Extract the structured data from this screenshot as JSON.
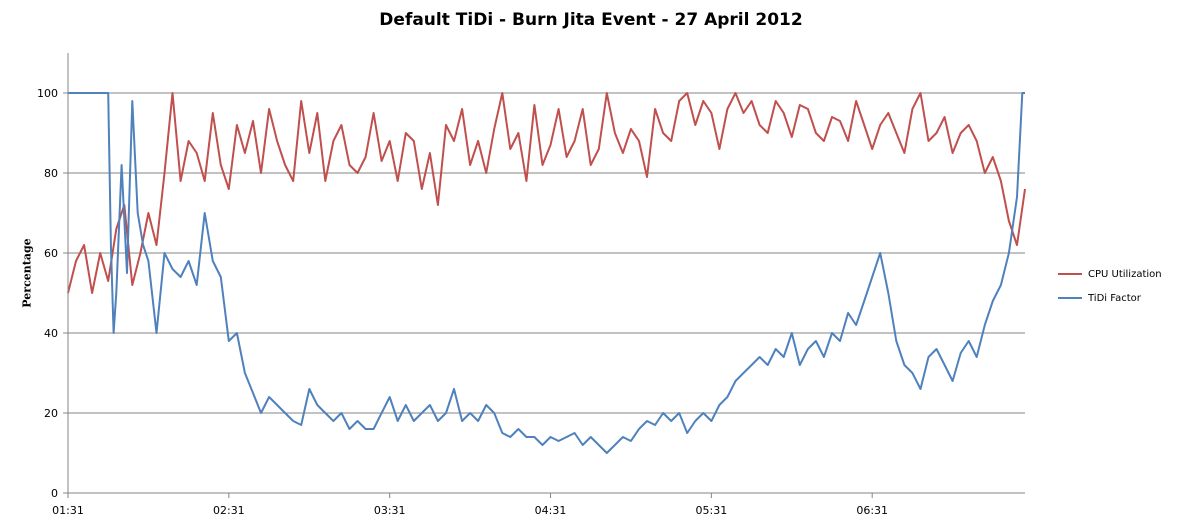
{
  "chart_data": {
    "type": "line",
    "title": "Default TiDi - Burn Jita Event - 27 April 2012",
    "xlabel": "",
    "ylabel": "Percentage",
    "ylim": [
      0,
      110
    ],
    "yticks": [
      "0",
      "20",
      "40",
      "60",
      "80",
      "100"
    ],
    "xticks": [
      "01:31",
      "02:31",
      "03:31",
      "04:31",
      "05:31",
      "06:31"
    ],
    "xrange_minutes": [
      0,
      357
    ],
    "grid": true,
    "legend_position": "right",
    "series": [
      {
        "name": "CPU Utilization",
        "color": "#C0504D",
        "points": [
          [
            0,
            50
          ],
          [
            3,
            58
          ],
          [
            6,
            62
          ],
          [
            9,
            50
          ],
          [
            12,
            60
          ],
          [
            15,
            53
          ],
          [
            18,
            66
          ],
          [
            21,
            72
          ],
          [
            24,
            52
          ],
          [
            27,
            60
          ],
          [
            30,
            70
          ],
          [
            33,
            62
          ],
          [
            36,
            80
          ],
          [
            39,
            100
          ],
          [
            42,
            78
          ],
          [
            45,
            88
          ],
          [
            48,
            85
          ],
          [
            51,
            78
          ],
          [
            54,
            95
          ],
          [
            57,
            82
          ],
          [
            60,
            76
          ],
          [
            63,
            92
          ],
          [
            66,
            85
          ],
          [
            69,
            93
          ],
          [
            72,
            80
          ],
          [
            75,
            96
          ],
          [
            78,
            88
          ],
          [
            81,
            82
          ],
          [
            84,
            78
          ],
          [
            87,
            98
          ],
          [
            90,
            85
          ],
          [
            93,
            95
          ],
          [
            96,
            78
          ],
          [
            99,
            88
          ],
          [
            102,
            92
          ],
          [
            105,
            82
          ],
          [
            108,
            80
          ],
          [
            111,
            84
          ],
          [
            114,
            95
          ],
          [
            117,
            83
          ],
          [
            120,
            88
          ],
          [
            123,
            78
          ],
          [
            126,
            90
          ],
          [
            129,
            88
          ],
          [
            132,
            76
          ],
          [
            135,
            85
          ],
          [
            138,
            72
          ],
          [
            141,
            92
          ],
          [
            144,
            88
          ],
          [
            147,
            96
          ],
          [
            150,
            82
          ],
          [
            153,
            88
          ],
          [
            156,
            80
          ],
          [
            159,
            91
          ],
          [
            162,
            100
          ],
          [
            165,
            86
          ],
          [
            168,
            90
          ],
          [
            171,
            78
          ],
          [
            174,
            97
          ],
          [
            177,
            82
          ],
          [
            180,
            87
          ],
          [
            183,
            96
          ],
          [
            186,
            84
          ],
          [
            189,
            88
          ],
          [
            192,
            96
          ],
          [
            195,
            82
          ],
          [
            198,
            86
          ],
          [
            201,
            100
          ],
          [
            204,
            90
          ],
          [
            207,
            85
          ],
          [
            210,
            91
          ],
          [
            213,
            88
          ],
          [
            216,
            79
          ],
          [
            219,
            96
          ],
          [
            222,
            90
          ],
          [
            225,
            88
          ],
          [
            228,
            98
          ],
          [
            231,
            100
          ],
          [
            234,
            92
          ],
          [
            237,
            98
          ],
          [
            240,
            95
          ],
          [
            243,
            86
          ],
          [
            246,
            96
          ],
          [
            249,
            100
          ],
          [
            252,
            95
          ],
          [
            255,
            98
          ],
          [
            258,
            92
          ],
          [
            261,
            90
          ],
          [
            264,
            98
          ],
          [
            267,
            95
          ],
          [
            270,
            89
          ],
          [
            273,
            97
          ],
          [
            276,
            96
          ],
          [
            279,
            90
          ],
          [
            282,
            88
          ],
          [
            285,
            94
          ],
          [
            288,
            93
          ],
          [
            291,
            88
          ],
          [
            294,
            98
          ],
          [
            297,
            92
          ],
          [
            300,
            86
          ],
          [
            303,
            92
          ],
          [
            306,
            95
          ],
          [
            309,
            90
          ],
          [
            312,
            85
          ],
          [
            315,
            96
          ],
          [
            318,
            100
          ],
          [
            321,
            88
          ],
          [
            324,
            90
          ],
          [
            327,
            94
          ],
          [
            330,
            85
          ],
          [
            333,
            90
          ],
          [
            336,
            92
          ],
          [
            339,
            88
          ],
          [
            342,
            80
          ],
          [
            345,
            84
          ],
          [
            348,
            78
          ],
          [
            351,
            68
          ],
          [
            354,
            62
          ],
          [
            357,
            76
          ]
        ]
      },
      {
        "name": "TiDi Factor",
        "color": "#4F81BD",
        "points": [
          [
            0,
            100
          ],
          [
            13,
            100
          ],
          [
            15,
            100
          ],
          [
            16,
            62
          ],
          [
            17,
            40
          ],
          [
            18,
            50
          ],
          [
            20,
            82
          ],
          [
            22,
            55
          ],
          [
            24,
            98
          ],
          [
            26,
            70
          ],
          [
            28,
            62
          ],
          [
            30,
            58
          ],
          [
            33,
            40
          ],
          [
            36,
            60
          ],
          [
            39,
            56
          ],
          [
            42,
            54
          ],
          [
            45,
            58
          ],
          [
            48,
            52
          ],
          [
            51,
            70
          ],
          [
            54,
            58
          ],
          [
            57,
            54
          ],
          [
            60,
            38
          ],
          [
            63,
            40
          ],
          [
            66,
            30
          ],
          [
            69,
            25
          ],
          [
            72,
            20
          ],
          [
            75,
            24
          ],
          [
            78,
            22
          ],
          [
            81,
            20
          ],
          [
            84,
            18
          ],
          [
            87,
            17
          ],
          [
            90,
            26
          ],
          [
            93,
            22
          ],
          [
            96,
            20
          ],
          [
            99,
            18
          ],
          [
            102,
            20
          ],
          [
            105,
            16
          ],
          [
            108,
            18
          ],
          [
            111,
            16
          ],
          [
            114,
            16
          ],
          [
            117,
            20
          ],
          [
            120,
            24
          ],
          [
            123,
            18
          ],
          [
            126,
            22
          ],
          [
            129,
            18
          ],
          [
            132,
            20
          ],
          [
            135,
            22
          ],
          [
            138,
            18
          ],
          [
            141,
            20
          ],
          [
            144,
            26
          ],
          [
            147,
            18
          ],
          [
            150,
            20
          ],
          [
            153,
            18
          ],
          [
            156,
            22
          ],
          [
            159,
            20
          ],
          [
            162,
            15
          ],
          [
            165,
            14
          ],
          [
            168,
            16
          ],
          [
            171,
            14
          ],
          [
            174,
            14
          ],
          [
            177,
            12
          ],
          [
            180,
            14
          ],
          [
            183,
            13
          ],
          [
            186,
            14
          ],
          [
            189,
            15
          ],
          [
            192,
            12
          ],
          [
            195,
            14
          ],
          [
            198,
            12
          ],
          [
            201,
            10
          ],
          [
            204,
            12
          ],
          [
            207,
            14
          ],
          [
            210,
            13
          ],
          [
            213,
            16
          ],
          [
            216,
            18
          ],
          [
            219,
            17
          ],
          [
            222,
            20
          ],
          [
            225,
            18
          ],
          [
            228,
            20
          ],
          [
            231,
            15
          ],
          [
            234,
            18
          ],
          [
            237,
            20
          ],
          [
            240,
            18
          ],
          [
            243,
            22
          ],
          [
            246,
            24
          ],
          [
            249,
            28
          ],
          [
            252,
            30
          ],
          [
            255,
            32
          ],
          [
            258,
            34
          ],
          [
            261,
            32
          ],
          [
            264,
            36
          ],
          [
            267,
            34
          ],
          [
            270,
            40
          ],
          [
            273,
            32
          ],
          [
            276,
            36
          ],
          [
            279,
            38
          ],
          [
            282,
            34
          ],
          [
            285,
            40
          ],
          [
            288,
            38
          ],
          [
            291,
            45
          ],
          [
            294,
            42
          ],
          [
            297,
            48
          ],
          [
            300,
            54
          ],
          [
            303,
            60
          ],
          [
            306,
            50
          ],
          [
            309,
            38
          ],
          [
            312,
            32
          ],
          [
            315,
            30
          ],
          [
            318,
            26
          ],
          [
            321,
            34
          ],
          [
            324,
            36
          ],
          [
            327,
            32
          ],
          [
            330,
            28
          ],
          [
            333,
            35
          ],
          [
            336,
            38
          ],
          [
            339,
            34
          ],
          [
            342,
            42
          ],
          [
            345,
            48
          ],
          [
            348,
            52
          ],
          [
            351,
            60
          ],
          [
            354,
            74
          ],
          [
            356,
            100
          ],
          [
            357,
            100
          ]
        ]
      }
    ]
  }
}
